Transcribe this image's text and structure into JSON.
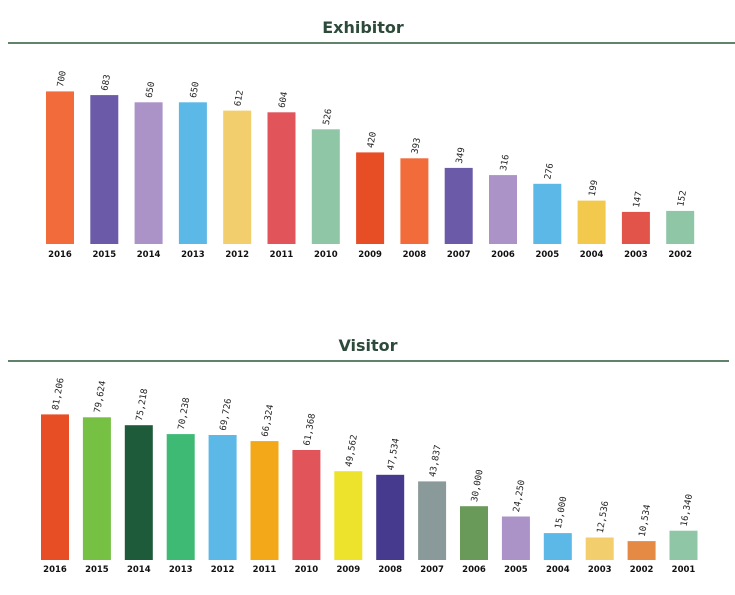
{
  "chart_data": [
    {
      "type": "bar",
      "title": "Exhibitor",
      "xlabel": "",
      "ylabel": "",
      "ylim": [
        0,
        720
      ],
      "grid": false,
      "legend": "none",
      "categories": [
        "2016",
        "2015",
        "2014",
        "2013",
        "2012",
        "2011",
        "2010",
        "2009",
        "2008",
        "2007",
        "2006",
        "2005",
        "2004",
        "2003",
        "2002"
      ],
      "values": [
        700,
        683,
        650,
        650,
        612,
        604,
        526,
        420,
        393,
        349,
        316,
        276,
        199,
        147,
        152
      ],
      "value_labels": [
        "700",
        "683",
        "650",
        "650",
        "612",
        "604",
        "526",
        "420",
        "393",
        "349",
        "316",
        "276",
        "199",
        "147",
        "152"
      ],
      "colors": [
        "#f26b3a",
        "#6a5aa8",
        "#ab92c7",
        "#5cb8e6",
        "#f2cf6c",
        "#e0545a",
        "#8fc6a6",
        "#e84e26",
        "#f26b3a",
        "#6a5aa8",
        "#ab92c7",
        "#5cb8e6",
        "#f2c94c",
        "#e2534a",
        "#8fc6a6"
      ]
    },
    {
      "type": "bar",
      "title": "Visitor",
      "xlabel": "",
      "ylabel": "",
      "ylim": [
        0,
        82000
      ],
      "grid": false,
      "legend": "none",
      "categories": [
        "2016",
        "2015",
        "2014",
        "2013",
        "2012",
        "2011",
        "2010",
        "2009",
        "2008",
        "2007",
        "2006",
        "2005",
        "2004",
        "2003",
        "2002",
        "2001"
      ],
      "values": [
        81206,
        79624,
        75218,
        70238,
        69726,
        66324,
        61368,
        49562,
        47534,
        43837,
        30000,
        24250,
        15000,
        12536,
        10534,
        16340
      ],
      "value_labels": [
        "81,206",
        "79,624",
        "75,218",
        "70,238",
        "69,726",
        "66,324",
        "61,368",
        "49,562",
        "47,534",
        "43,837",
        "30,000",
        "24,250",
        "15,000",
        "12,536",
        "10,534",
        "16,340"
      ],
      "colors": [
        "#e84e26",
        "#76c043",
        "#1e5b3a",
        "#3fba74",
        "#5cb8e6",
        "#f2a818",
        "#e0545a",
        "#eee32c",
        "#463a8e",
        "#8a9a9b",
        "#6a9a5a",
        "#ab92c7",
        "#5cb8e6",
        "#f2cf6c",
        "#e58a45",
        "#8fc6a6"
      ]
    }
  ],
  "colors": {
    "rule": "#2e5a3a",
    "title": "#2d4a3a"
  }
}
